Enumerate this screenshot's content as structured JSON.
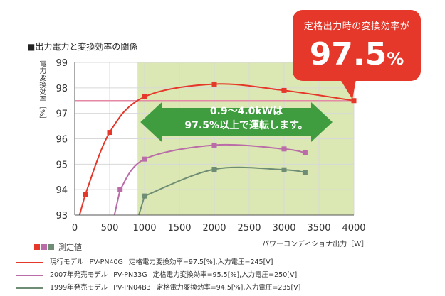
{
  "page_title": "■出力電力と変換効率の関係",
  "callout": {
    "line1": "定格出力時の変換効率が",
    "value": "97.5",
    "unit": "%"
  },
  "banner": {
    "line1": "0.9～4.0kWは",
    "line2": "97.5%以上で運転します。"
  },
  "legend": {
    "title": "測定値",
    "rows": [
      {
        "name": "現行モデル",
        "model": "PV-PN40G",
        "spec": "定格電力変換効率=97.5[%],入力電圧=245[V]",
        "color": "#e5372a"
      },
      {
        "name": "2007年発売モデル",
        "model": "PV-PN33G",
        "spec": "定格電力変換効率=95.5[%],入力電圧=250[V]",
        "color": "#b96ca8"
      },
      {
        "name": "1999年発売モデル",
        "model": "PV-PN04B3",
        "spec": "定格電力変換効率=94.5[%],入力電圧=235[V]",
        "color": "#6f8d74"
      }
    ]
  },
  "colors": {
    "highlight_band": "#dbe8b4",
    "arrow": "#3f9d3f",
    "reference_line": "#e58aa6",
    "grid": "#d8d8d8"
  },
  "chart_data": {
    "type": "line",
    "title": "",
    "xlabel": "パワーコンディショナ出力［W］",
    "ylabel": "電力変換効率［%］",
    "xlim": [
      0,
      4000
    ],
    "ylim": [
      93,
      99
    ],
    "x_ticks": [
      0,
      500,
      1000,
      1500,
      2000,
      2500,
      3000,
      3500,
      4000
    ],
    "y_ticks": [
      93,
      94,
      95,
      96,
      97,
      98,
      99
    ],
    "grid": true,
    "highlight_range": [
      900,
      4000
    ],
    "reference_y": 97.5,
    "series": [
      {
        "name": "現行モデル",
        "color": "#e5372a",
        "points": [
          [
            150,
            93.8
          ],
          [
            500,
            96.25
          ],
          [
            1000,
            97.65
          ],
          [
            2000,
            98.15
          ],
          [
            3000,
            97.9
          ],
          [
            4000,
            97.5
          ]
        ]
      },
      {
        "name": "2007年発売モデル",
        "color": "#b96ca8",
        "points": [
          [
            650,
            94.0
          ],
          [
            1000,
            95.2
          ],
          [
            2000,
            95.75
          ],
          [
            3000,
            95.6
          ],
          [
            3300,
            95.45
          ]
        ]
      },
      {
        "name": "1999年発売モデル",
        "color": "#6f8d74",
        "points": [
          [
            1000,
            93.75
          ],
          [
            2000,
            94.8
          ],
          [
            3000,
            94.78
          ],
          [
            3300,
            94.68
          ]
        ]
      }
    ]
  }
}
